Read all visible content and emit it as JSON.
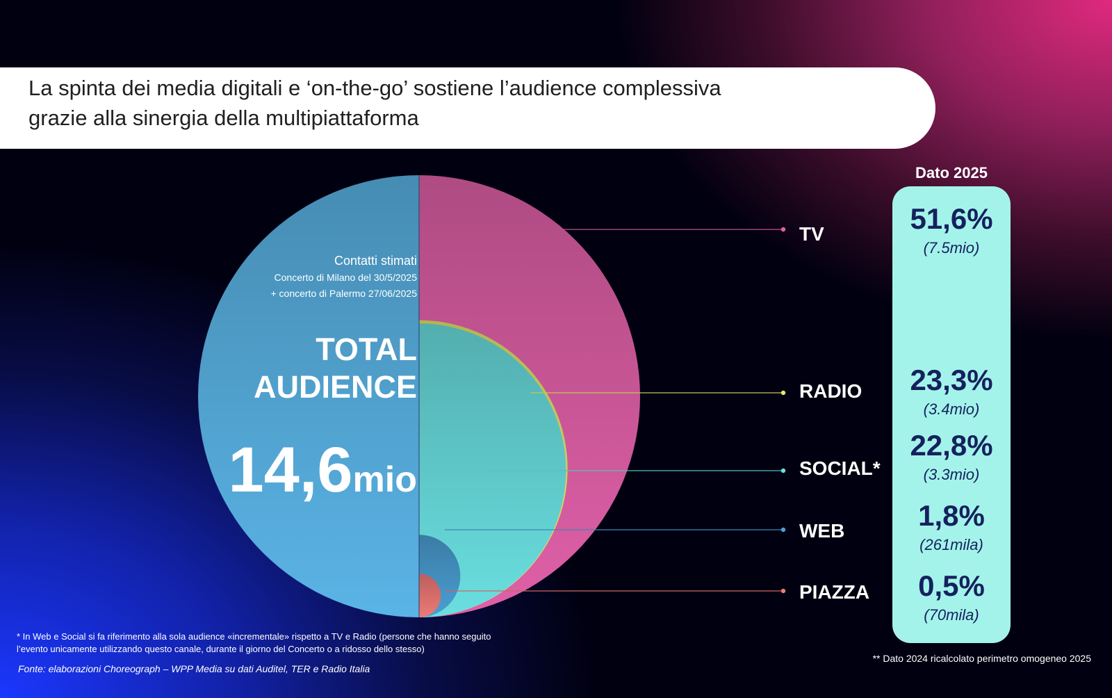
{
  "title": {
    "line1": "La spinta dei media digitali e ‘on-the-go’ sostiene l’audience complessiva",
    "line2": "grazie alla sinergia della multipiattaforma"
  },
  "circle": {
    "caption_title": "Contatti stimati",
    "caption_line1": "Concerto di Milano del 30/5/2025",
    "caption_line2": "+ concerto di Palermo 27/06/2025",
    "total_line1": "TOTAL",
    "total_line2": "AUDIENCE",
    "total_value": "14,6",
    "total_unit": "mio"
  },
  "panel": {
    "heading": "Dato 2025"
  },
  "chart_data": {
    "type": "bubble",
    "title": "",
    "total": {
      "label": "TOTAL AUDIENCE",
      "value": 14.6,
      "unit": "mio"
    },
    "series": [
      {
        "name": "TV",
        "percent_label": "51,6%",
        "percent": 51.6,
        "amount_label": "(7.5mio)",
        "amount_mio": 7.5,
        "color": "#e060a8"
      },
      {
        "name": "RADIO",
        "percent_label": "23,3%",
        "percent": 23.3,
        "amount_label": "(3.4mio)",
        "amount_mio": 3.4,
        "color": "#e6e868"
      },
      {
        "name": "SOCIAL*",
        "percent_label": "22,8%",
        "percent": 22.8,
        "amount_label": "(3.3mio)",
        "amount_mio": 3.3,
        "color": "#6adfe0"
      },
      {
        "name": "WEB",
        "percent_label": "1,8%",
        "percent": 1.8,
        "amount_label": "(261mila)",
        "amount_mio": 0.261,
        "color": "#4a9fd4"
      },
      {
        "name": "PIAZZA",
        "percent_label": "0,5%",
        "percent": 0.5,
        "amount_label": "(70mila)",
        "amount_mio": 0.07,
        "color": "#ee7a76"
      }
    ],
    "total_circle_color": "#5ab4e6"
  },
  "footnotes": {
    "incremental_line1": "* In Web e Social si fa riferimento alla sola audience «incrementale» rispetto a TV e Radio (persone che hanno seguito",
    "incremental_line2": "l’evento unicamente utilizzando questo canale, durante il giorno del Concerto o a ridosso dello stesso)",
    "source": "Fonte: elaborazioni Choreograph – WPP Media su dati Auditel, TER e Radio Italia",
    "recalc": "** Dato 2024 ricalcolato perimetro omogeneo 2025"
  }
}
